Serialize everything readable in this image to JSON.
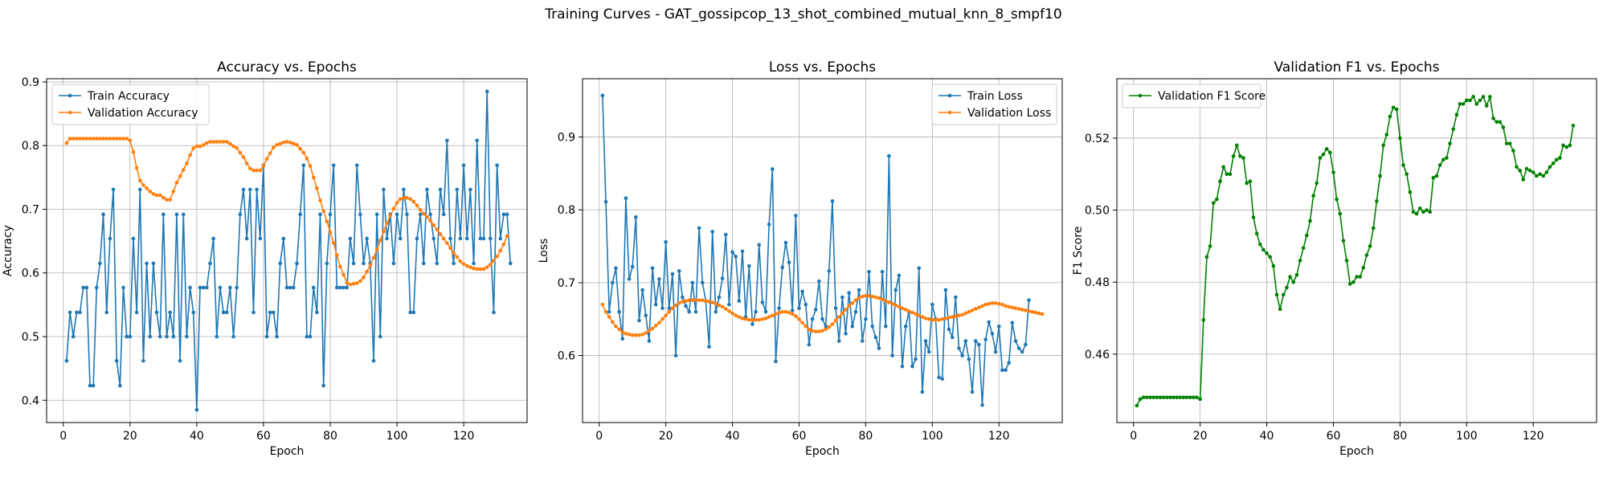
{
  "figure_title": "Training Curves - GAT_gossipcop_13_shot_combined_mutual_knn_8_smpf10",
  "chart_data": [
    {
      "type": "line",
      "title": "Accuracy vs. Epochs",
      "xlabel": "Epoch",
      "ylabel": "Accuracy",
      "xlim": [
        -5,
        139
      ],
      "ylim": [
        0.365,
        0.905
      ],
      "xticks": [
        0,
        20,
        40,
        60,
        80,
        100,
        120
      ],
      "yticks": [
        0.4,
        0.5,
        0.6,
        0.7,
        0.8,
        0.9
      ],
      "ytick_labels": [
        "0.4",
        "0.5",
        "0.6",
        "0.7",
        "0.8",
        "0.9"
      ],
      "grid": true,
      "legend": "top-left",
      "series": [
        {
          "name": "Train Accuracy",
          "color": "#1f77b4",
          "values": [
            0.462,
            0.538,
            0.5,
            0.538,
            0.538,
            0.577,
            0.577,
            0.423,
            0.423,
            0.577,
            0.615,
            0.692,
            0.538,
            0.654,
            0.731,
            0.462,
            0.423,
            0.577,
            0.5,
            0.5,
            0.654,
            0.538,
            0.731,
            0.462,
            0.615,
            0.5,
            0.615,
            0.538,
            0.5,
            0.692,
            0.5,
            0.538,
            0.5,
            0.692,
            0.462,
            0.692,
            0.5,
            0.577,
            0.538,
            0.385,
            0.577,
            0.577,
            0.577,
            0.615,
            0.654,
            0.5,
            0.577,
            0.538,
            0.538,
            0.577,
            0.5,
            0.577,
            0.692,
            0.731,
            0.654,
            0.731,
            0.538,
            0.731,
            0.654,
            0.769,
            0.5,
            0.538,
            0.538,
            0.5,
            0.615,
            0.654,
            0.577,
            0.577,
            0.577,
            0.615,
            0.692,
            0.769,
            0.5,
            0.5,
            0.577,
            0.538,
            0.692,
            0.423,
            0.615,
            0.692,
            0.769,
            0.577,
            0.577,
            0.577,
            0.577,
            0.654,
            0.615,
            0.769,
            0.692,
            0.615,
            0.654,
            0.615,
            0.462,
            0.692,
            0.5,
            0.731,
            0.654,
            0.692,
            0.615,
            0.692,
            0.654,
            0.731,
            0.692,
            0.538,
            0.538,
            0.654,
            0.692,
            0.615,
            0.731,
            0.692,
            0.654,
            0.615,
            0.731,
            0.692,
            0.808,
            0.654,
            0.615,
            0.731,
            0.654,
            0.769,
            0.654,
            0.731,
            0.615,
            0.808,
            0.654,
            0.654,
            0.885,
            0.654,
            0.538,
            0.769,
            0.654,
            0.692,
            0.692,
            0.615
          ]
        },
        {
          "name": "Validation Accuracy",
          "color": "#ff7f0e",
          "values": [
            0.804,
            0.811,
            0.811,
            0.811,
            0.811,
            0.811,
            0.811,
            0.811,
            0.811,
            0.811,
            0.811,
            0.811,
            0.811,
            0.811,
            0.811,
            0.811,
            0.811,
            0.811,
            0.811,
            0.808,
            0.79,
            0.765,
            0.745,
            0.738,
            0.733,
            0.728,
            0.724,
            0.722,
            0.722,
            0.718,
            0.715,
            0.715,
            0.728,
            0.742,
            0.752,
            0.762,
            0.772,
            0.785,
            0.796,
            0.799,
            0.799,
            0.801,
            0.804,
            0.806,
            0.806,
            0.806,
            0.806,
            0.806,
            0.806,
            0.803,
            0.799,
            0.796,
            0.789,
            0.782,
            0.772,
            0.764,
            0.761,
            0.761,
            0.761,
            0.768,
            0.779,
            0.788,
            0.797,
            0.801,
            0.803,
            0.805,
            0.806,
            0.805,
            0.803,
            0.801,
            0.795,
            0.789,
            0.78,
            0.768,
            0.75,
            0.733,
            0.714,
            0.697,
            0.681,
            0.664,
            0.647,
            0.628,
            0.61,
            0.597,
            0.585,
            0.582,
            0.583,
            0.584,
            0.587,
            0.593,
            0.602,
            0.612,
            0.624,
            0.637,
            0.651,
            0.665,
            0.678,
            0.69,
            0.701,
            0.71,
            0.716,
            0.718,
            0.718,
            0.716,
            0.712,
            0.706,
            0.699,
            0.693,
            0.688,
            0.682,
            0.675,
            0.668,
            0.661,
            0.654,
            0.647,
            0.639,
            0.631,
            0.625,
            0.618,
            0.614,
            0.611,
            0.609,
            0.607,
            0.606,
            0.606,
            0.606,
            0.609,
            0.613,
            0.619,
            0.626,
            0.635,
            0.645,
            0.658
          ]
        }
      ]
    },
    {
      "type": "line",
      "title": "Loss vs. Epochs",
      "xlabel": "Epoch",
      "ylabel": "Loss",
      "xlim": [
        -5,
        139
      ],
      "ylim": [
        0.508,
        0.98
      ],
      "xticks": [
        0,
        20,
        40,
        60,
        80,
        100,
        120
      ],
      "yticks": [
        0.6,
        0.7,
        0.8,
        0.9
      ],
      "ytick_labels": [
        "0.6",
        "0.7",
        "0.8",
        "0.9"
      ],
      "grid": true,
      "legend": "top-right",
      "series": [
        {
          "name": "Train Loss",
          "color": "#1f77b4",
          "values": [
            0.957,
            0.811,
            0.66,
            0.7,
            0.72,
            0.66,
            0.623,
            0.816,
            0.705,
            0.722,
            0.79,
            0.648,
            0.69,
            0.655,
            0.62,
            0.72,
            0.67,
            0.705,
            0.665,
            0.756,
            0.665,
            0.712,
            0.6,
            0.716,
            0.68,
            0.668,
            0.66,
            0.7,
            0.66,
            0.775,
            0.7,
            0.675,
            0.612,
            0.77,
            0.66,
            0.68,
            0.706,
            0.766,
            0.67,
            0.742,
            0.736,
            0.675,
            0.743,
            0.653,
            0.723,
            0.643,
            0.66,
            0.752,
            0.673,
            0.66,
            0.78,
            0.856,
            0.592,
            0.665,
            0.721,
            0.755,
            0.728,
            0.662,
            0.792,
            0.665,
            0.688,
            0.67,
            0.615,
            0.65,
            0.663,
            0.702,
            0.65,
            0.64,
            0.716,
            0.812,
            0.665,
            0.62,
            0.68,
            0.63,
            0.686,
            0.64,
            0.66,
            0.69,
            0.62,
            0.65,
            0.715,
            0.64,
            0.625,
            0.61,
            0.715,
            0.64,
            0.874,
            0.6,
            0.69,
            0.71,
            0.585,
            0.64,
            0.66,
            0.585,
            0.595,
            0.72,
            0.55,
            0.62,
            0.605,
            0.67,
            0.65,
            0.57,
            0.568,
            0.69,
            0.636,
            0.625,
            0.68,
            0.61,
            0.6,
            0.62,
            0.595,
            0.55,
            0.62,
            0.615,
            0.532,
            0.622,
            0.646,
            0.63,
            0.605,
            0.64,
            0.58,
            0.58,
            0.59,
            0.645,
            0.62,
            0.61,
            0.605,
            0.615,
            0.676
          ]
        },
        {
          "name": "Validation Loss",
          "color": "#ff7f0e",
          "values": [
            0.67,
            0.66,
            0.653,
            0.646,
            0.64,
            0.636,
            0.632,
            0.63,
            0.629,
            0.628,
            0.628,
            0.628,
            0.629,
            0.631,
            0.634,
            0.637,
            0.641,
            0.645,
            0.65,
            0.655,
            0.66,
            0.665,
            0.669,
            0.672,
            0.674,
            0.675,
            0.676,
            0.676,
            0.676,
            0.676,
            0.676,
            0.675,
            0.674,
            0.673,
            0.671,
            0.669,
            0.667,
            0.664,
            0.661,
            0.658,
            0.655,
            0.653,
            0.651,
            0.65,
            0.649,
            0.649,
            0.649,
            0.649,
            0.65,
            0.651,
            0.653,
            0.655,
            0.657,
            0.659,
            0.66,
            0.66,
            0.659,
            0.657,
            0.654,
            0.65,
            0.645,
            0.64,
            0.636,
            0.634,
            0.633,
            0.633,
            0.634,
            0.636,
            0.639,
            0.643,
            0.648,
            0.653,
            0.658,
            0.663,
            0.668,
            0.672,
            0.676,
            0.679,
            0.681,
            0.682,
            0.682,
            0.681,
            0.68,
            0.679,
            0.677,
            0.675,
            0.673,
            0.671,
            0.669,
            0.667,
            0.665,
            0.663,
            0.661,
            0.659,
            0.657,
            0.655,
            0.653,
            0.651,
            0.65,
            0.649,
            0.649,
            0.649,
            0.65,
            0.651,
            0.652,
            0.653,
            0.654,
            0.655,
            0.656,
            0.658,
            0.66,
            0.662,
            0.664,
            0.666,
            0.668,
            0.67,
            0.671,
            0.672,
            0.672,
            0.671,
            0.67,
            0.668,
            0.667,
            0.666,
            0.665,
            0.664,
            0.663,
            0.662,
            0.661,
            0.66,
            0.659,
            0.658,
            0.657
          ]
        }
      ]
    },
    {
      "type": "line",
      "title": "Validation F1 vs. Epochs",
      "xlabel": "Epoch",
      "ylabel": "F1 Score",
      "xlim": [
        -5,
        139
      ],
      "ylim": [
        0.441,
        0.5365
      ],
      "xticks": [
        0,
        20,
        40,
        60,
        80,
        100,
        120
      ],
      "yticks": [
        0.46,
        0.48,
        0.5,
        0.52
      ],
      "ytick_labels": [
        "0.46",
        "0.48",
        "0.50",
        "0.52"
      ],
      "grid": true,
      "legend": "top-left",
      "series": [
        {
          "name": "Validation F1 Score",
          "color": "#008000",
          "values": [
            0.4457,
            0.4475,
            0.448,
            0.448,
            0.448,
            0.448,
            0.448,
            0.448,
            0.448,
            0.448,
            0.448,
            0.448,
            0.448,
            0.448,
            0.448,
            0.448,
            0.448,
            0.448,
            0.448,
            0.4475,
            0.4695,
            0.487,
            0.49,
            0.502,
            0.503,
            0.508,
            0.512,
            0.51,
            0.51,
            0.515,
            0.518,
            0.515,
            0.5145,
            0.5075,
            0.508,
            0.498,
            0.4935,
            0.4905,
            0.489,
            0.488,
            0.487,
            0.4845,
            0.4765,
            0.4725,
            0.4765,
            0.4785,
            0.4815,
            0.48,
            0.482,
            0.486,
            0.4895,
            0.493,
            0.497,
            0.504,
            0.5075,
            0.5145,
            0.5155,
            0.517,
            0.516,
            0.5105,
            0.503,
            0.499,
            0.4915,
            0.486,
            0.4795,
            0.48,
            0.4815,
            0.4815,
            0.484,
            0.4875,
            0.49,
            0.495,
            0.5025,
            0.5095,
            0.518,
            0.521,
            0.526,
            0.5285,
            0.528,
            0.52,
            0.5125,
            0.51,
            0.505,
            0.4995,
            0.499,
            0.5005,
            0.4995,
            0.5,
            0.4995,
            0.509,
            0.5095,
            0.5125,
            0.514,
            0.5145,
            0.5185,
            0.5225,
            0.5265,
            0.5295,
            0.5295,
            0.5305,
            0.5305,
            0.5315,
            0.5295,
            0.5305,
            0.5315,
            0.529,
            0.5315,
            0.5255,
            0.5245,
            0.5245,
            0.523,
            0.5185,
            0.5185,
            0.5165,
            0.512,
            0.511,
            0.5085,
            0.5115,
            0.511,
            0.5105,
            0.5095,
            0.51,
            0.5095,
            0.5105,
            0.512,
            0.513,
            0.514,
            0.5145,
            0.518,
            0.5175,
            0.518,
            0.5235
          ]
        }
      ]
    }
  ]
}
